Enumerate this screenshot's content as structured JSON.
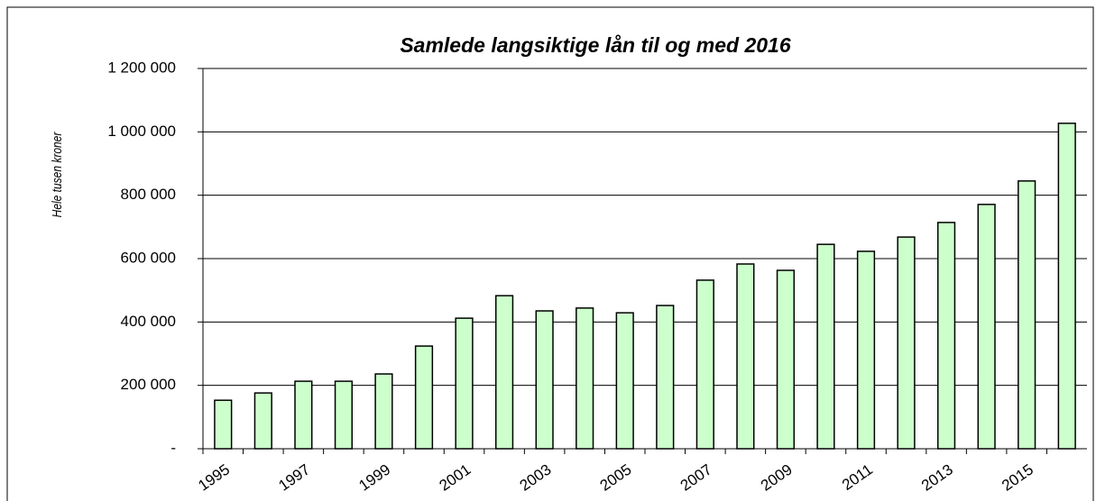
{
  "chart_data": {
    "type": "bar",
    "title": "Samlede langsiktige lån til og med 2016",
    "y_label": "Hele tusen kroner",
    "categories": [
      "1995",
      null,
      "1997",
      null,
      "1999",
      null,
      "2001",
      null,
      "2003",
      null,
      "2005",
      null,
      "2007",
      null,
      "2009",
      null,
      "2011",
      null,
      "2013",
      null,
      "2015",
      null
    ],
    "values": [
      153000,
      176000,
      213000,
      213000,
      236000,
      324000,
      412000,
      483000,
      435000,
      444000,
      429000,
      452000,
      532000,
      583000,
      563000,
      645000,
      623000,
      668000,
      714000,
      771000,
      845000,
      1027000
    ],
    "color": "#ccffcc",
    "ylim": [
      0,
      1200000
    ],
    "yticks": [
      {
        "value": 0,
        "label": "-"
      },
      {
        "value": 200000,
        "label": "200 000"
      },
      {
        "value": 400000,
        "label": "400 000"
      },
      {
        "value": 600000,
        "label": "600 000"
      },
      {
        "value": 800000,
        "label": "800 000"
      },
      {
        "value": 1000000,
        "label": "1 000 000"
      },
      {
        "value": 1200000,
        "label": "1 200 000"
      }
    ],
    "grid": true
  }
}
